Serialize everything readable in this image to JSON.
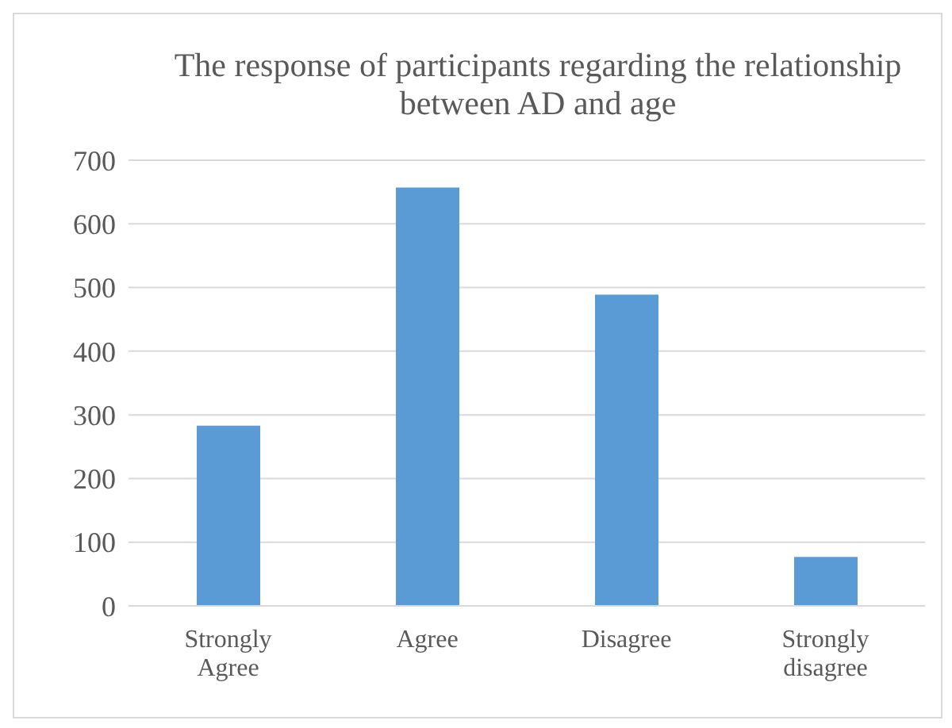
{
  "chart_data": {
    "type": "bar",
    "title": "The response of participants regarding the relationship between AD and age",
    "categories": [
      "Strongly Agree",
      "Agree",
      "Disagree",
      "Strongly disagree"
    ],
    "values": [
      283,
      657,
      489,
      77
    ],
    "color": "#5b9bd5",
    "ylim": [
      0,
      700
    ],
    "yticks": [
      0,
      100,
      200,
      300,
      400,
      500,
      600,
      700
    ],
    "grid": "y",
    "legend": false
  }
}
